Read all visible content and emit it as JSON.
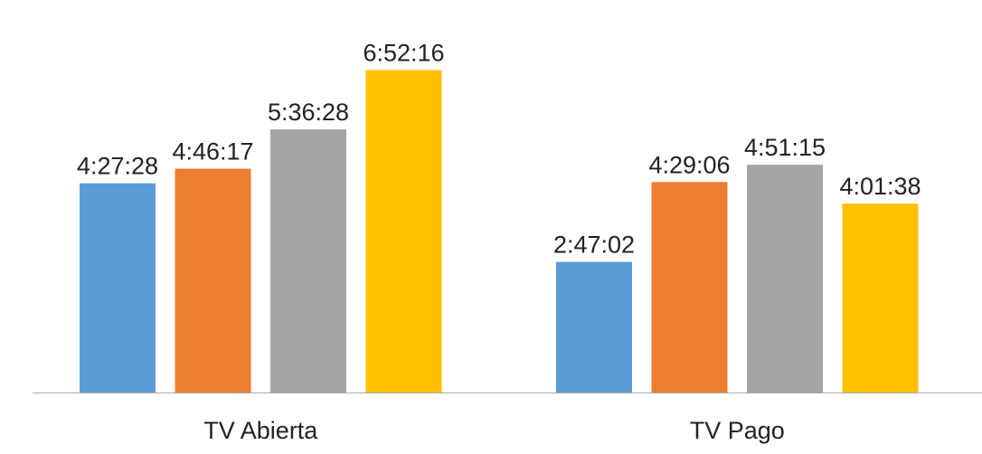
{
  "chart_data": {
    "type": "bar",
    "categories": [
      "TV Abierta",
      "TV Pago"
    ],
    "series": [
      {
        "color": "#5B9BD5",
        "values": [
          "4:27:28",
          "2:47:02"
        ]
      },
      {
        "color": "#ED7D31",
        "values": [
          "4:46:17",
          "4:29:06"
        ]
      },
      {
        "color": "#A5A5A5",
        "values": [
          "5:36:28",
          "4:51:15"
        ]
      },
      {
        "color": "#FFC000",
        "values": [
          "6:52:16",
          "4:01:38"
        ]
      }
    ],
    "ylim": [
      "0:00:00",
      "8:15:00"
    ],
    "grid": false,
    "legend": "none",
    "axis_color": "#A6A6A6"
  }
}
